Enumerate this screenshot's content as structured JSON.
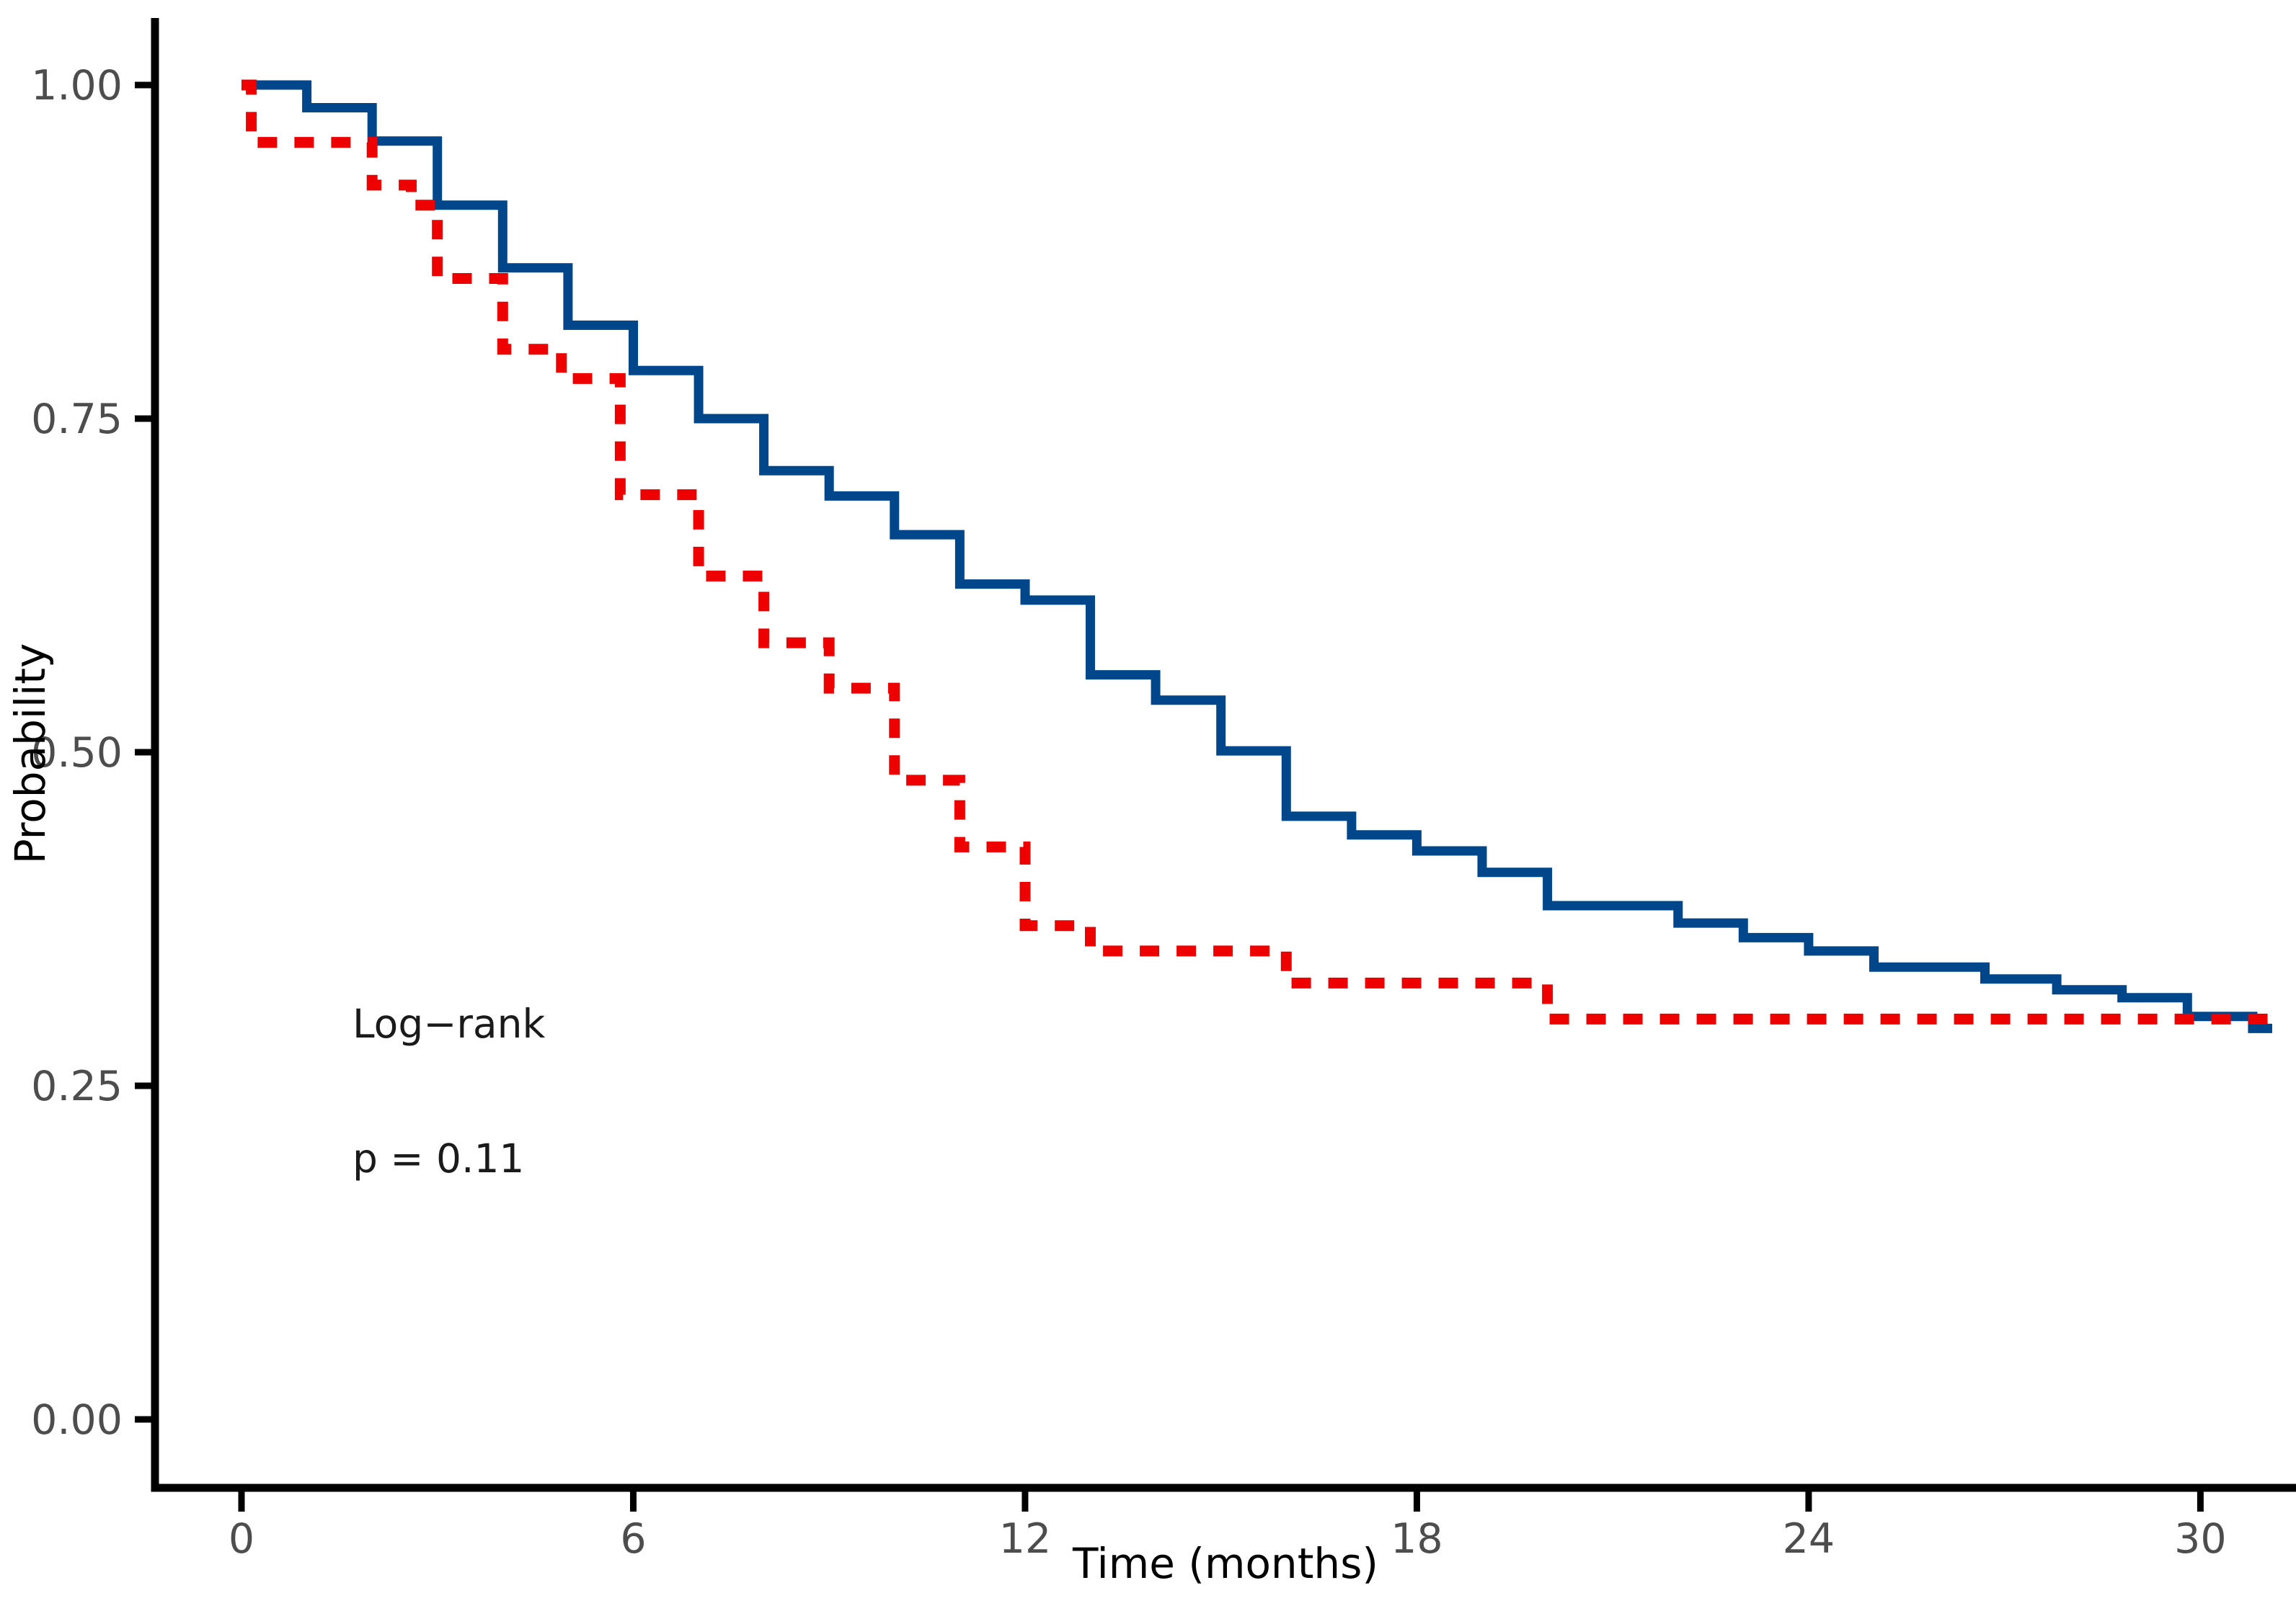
{
  "chart_data": {
    "type": "line",
    "subtype": "kaplan_meier_step_plot",
    "title": "",
    "xlabel": "Time (months)",
    "ylabel": "Probability",
    "grid": false,
    "legend_position": "none",
    "xlim": [
      -1.33,
      31.45
    ],
    "ylim": [
      -0.05,
      1.06
    ],
    "x_ticks": [
      {
        "label": "0",
        "value": 0
      },
      {
        "label": "6",
        "value": 6
      },
      {
        "label": "12",
        "value": 12
      },
      {
        "label": "18",
        "value": 18
      },
      {
        "label": "24",
        "value": 24
      },
      {
        "label": "30",
        "value": 30
      }
    ],
    "y_ticks": [
      {
        "label": "0.00",
        "value": 0.0
      },
      {
        "label": "0.25",
        "value": 0.25
      },
      {
        "label": "0.50",
        "value": 0.5
      },
      {
        "label": "0.75",
        "value": 0.75
      },
      {
        "label": "1.00",
        "value": 1.0
      }
    ],
    "annotations": [
      {
        "id": "logrank-label",
        "text": "Log−rank",
        "x": 1.7,
        "y": 0.297
      },
      {
        "id": "pvalue-label",
        "text": "p = 0.11",
        "x": 1.7,
        "y": 0.196
      }
    ],
    "colors": {
      "group_a": "#00468B",
      "group_b": "#EE0000",
      "axis": "#000000",
      "tick_text": "#4d4d4d"
    },
    "series": [
      {
        "name": "group-a-solid-blue",
        "color": "#00468B",
        "line_style": "solid",
        "line_width": 13,
        "dash_pattern": null,
        "end_time": 31.1,
        "steps": [
          [
            0,
            1.0
          ],
          [
            1,
            0.983
          ],
          [
            2,
            0.958
          ],
          [
            3,
            0.91
          ],
          [
            4,
            0.863
          ],
          [
            5,
            0.82
          ],
          [
            6,
            0.786
          ],
          [
            7,
            0.75
          ],
          [
            8,
            0.711
          ],
          [
            9,
            0.692
          ],
          [
            10,
            0.663
          ],
          [
            11,
            0.626
          ],
          [
            12,
            0.614
          ],
          [
            13,
            0.558
          ],
          [
            14,
            0.539
          ],
          [
            15,
            0.501
          ],
          [
            16,
            0.452
          ],
          [
            17,
            0.438
          ],
          [
            18,
            0.426
          ],
          [
            19,
            0.41
          ],
          [
            20,
            0.385
          ],
          [
            22,
            0.372
          ],
          [
            23,
            0.361
          ],
          [
            24,
            0.351
          ],
          [
            25,
            0.339
          ],
          [
            26.7,
            0.33
          ],
          [
            27.8,
            0.322
          ],
          [
            28.8,
            0.316
          ],
          [
            29.8,
            0.302
          ],
          [
            30.8,
            0.293
          ]
        ]
      },
      {
        "name": "group-b-dashed-red",
        "color": "#EE0000",
        "line_style": "dashed",
        "line_width": 15,
        "dash_pattern": [
          27,
          24
        ],
        "end_time": 31.1,
        "steps": [
          [
            0,
            1.0
          ],
          [
            0.15,
            0.957
          ],
          [
            2,
            0.925
          ],
          [
            2.6,
            0.91
          ],
          [
            3,
            0.855
          ],
          [
            4,
            0.802
          ],
          [
            4.9,
            0.78
          ],
          [
            5.8,
            0.693
          ],
          [
            7,
            0.632
          ],
          [
            8,
            0.582
          ],
          [
            9,
            0.548
          ],
          [
            10,
            0.479
          ],
          [
            11,
            0.429
          ],
          [
            12,
            0.37
          ],
          [
            13,
            0.351
          ],
          [
            16,
            0.327
          ],
          [
            20,
            0.3
          ]
        ]
      }
    ]
  }
}
